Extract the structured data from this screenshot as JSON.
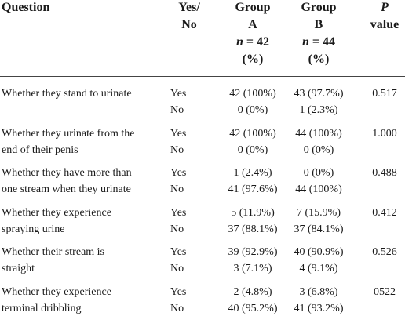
{
  "table": {
    "header": {
      "question": "Question",
      "yes_no": [
        "Yes/",
        "No"
      ],
      "group_a": {
        "lines": [
          "Group",
          "A"
        ],
        "n": "n",
        "count": "= 42",
        "unit": "(%)"
      },
      "group_b": {
        "lines": [
          "Group",
          "B"
        ],
        "n": "n",
        "count": "= 44",
        "unit": "(%)"
      },
      "p_value": {
        "p": "P",
        "label": "value"
      }
    },
    "rows": [
      {
        "question": [
          "Whether they stand to urinate"
        ],
        "answers": [
          "Yes",
          "No"
        ],
        "group_a": [
          "42 (100%)",
          "0 (0%)"
        ],
        "group_b": [
          "43 (97.7%)",
          "1 (2.3%)"
        ],
        "p": "0.517"
      },
      {
        "question": [
          "Whether they urinate from the",
          "end of their penis"
        ],
        "answers": [
          "Yes",
          "No"
        ],
        "group_a": [
          "42 (100%)",
          "0 (0%)"
        ],
        "group_b": [
          "44 (100%)",
          "0 (0%)"
        ],
        "p": "1.000"
      },
      {
        "question": [
          "Whether they have more than",
          "one stream when they urinate"
        ],
        "answers": [
          "Yes",
          "No"
        ],
        "group_a": [
          "1 (2.4%)",
          "41 (97.6%)"
        ],
        "group_b": [
          "0 (0%)",
          "44 (100%)"
        ],
        "p": "0.488"
      },
      {
        "question": [
          "Whether they experience",
          "spraying urine"
        ],
        "answers": [
          "Yes",
          "No"
        ],
        "group_a": [
          "5 (11.9%)",
          "37 (88.1%)"
        ],
        "group_b": [
          "7 (15.9%)",
          "37 (84.1%)"
        ],
        "p": "0.412"
      },
      {
        "question": [
          "Whether their stream is",
          "straight"
        ],
        "answers": [
          "Yes",
          "No"
        ],
        "group_a": [
          "39 (92.9%)",
          "3 (7.1%)"
        ],
        "group_b": [
          "40 (90.9%)",
          "4 (9.1%)"
        ],
        "p": "0.526"
      },
      {
        "question": [
          "Whether they experience",
          "terminal dribbling"
        ],
        "answers": [
          "Yes",
          "No"
        ],
        "group_a": [
          "2 (4.8%)",
          "40 (95.2%)"
        ],
        "group_b": [
          "3 (6.8%)",
          "41 (93.2%)"
        ],
        "p": "0522"
      }
    ]
  }
}
